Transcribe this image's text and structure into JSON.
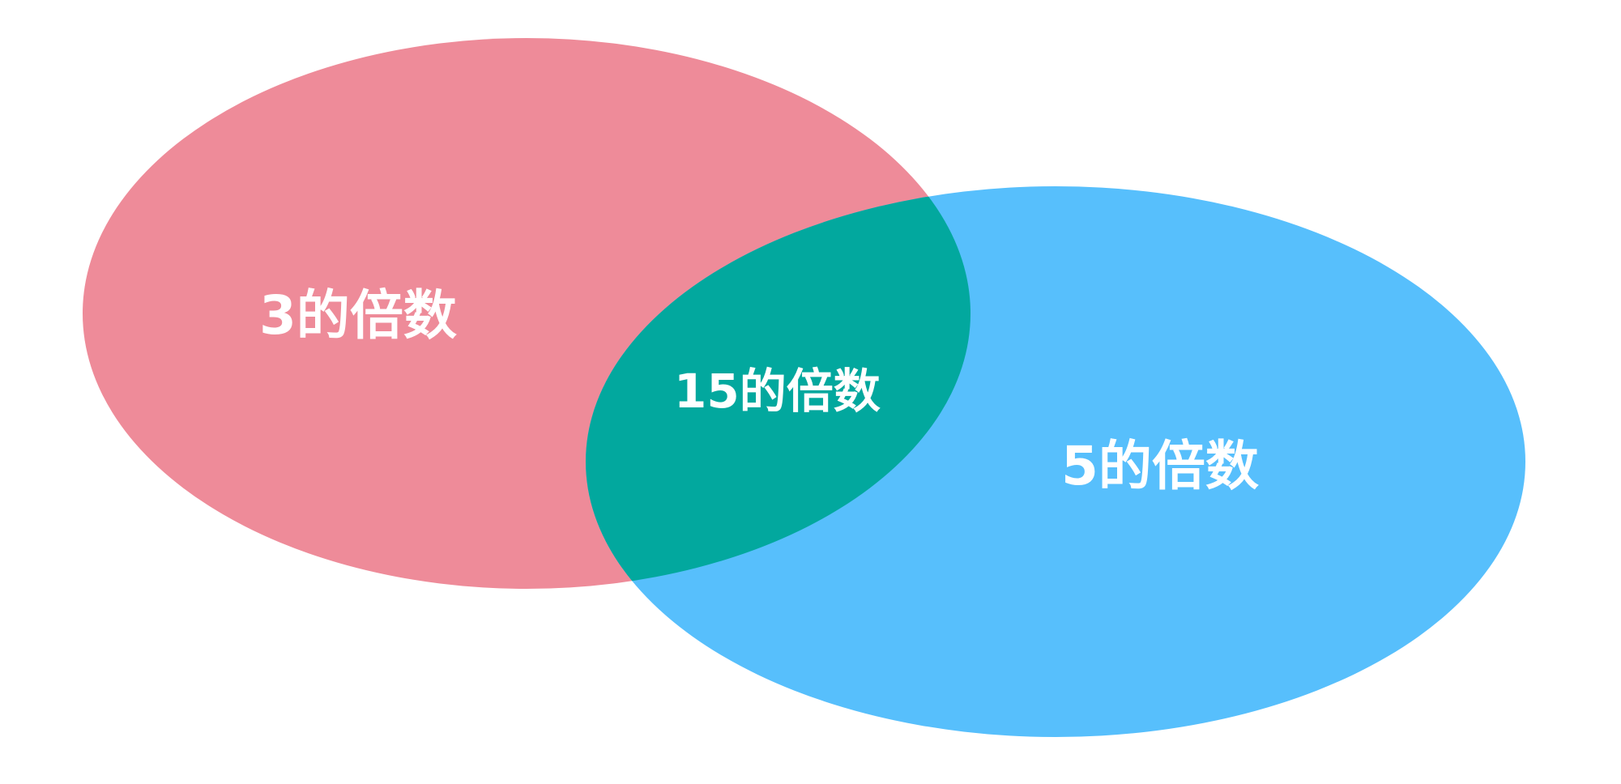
{
  "diagram": {
    "sets": [
      {
        "name": "multiples-of-3",
        "label": "3的倍数",
        "color": "#ee8b99"
      },
      {
        "name": "multiples-of-5",
        "label": "5的倍数",
        "color": "#57bffc"
      }
    ],
    "intersection": {
      "label": "15的倍数",
      "color": "#02a89e"
    }
  }
}
